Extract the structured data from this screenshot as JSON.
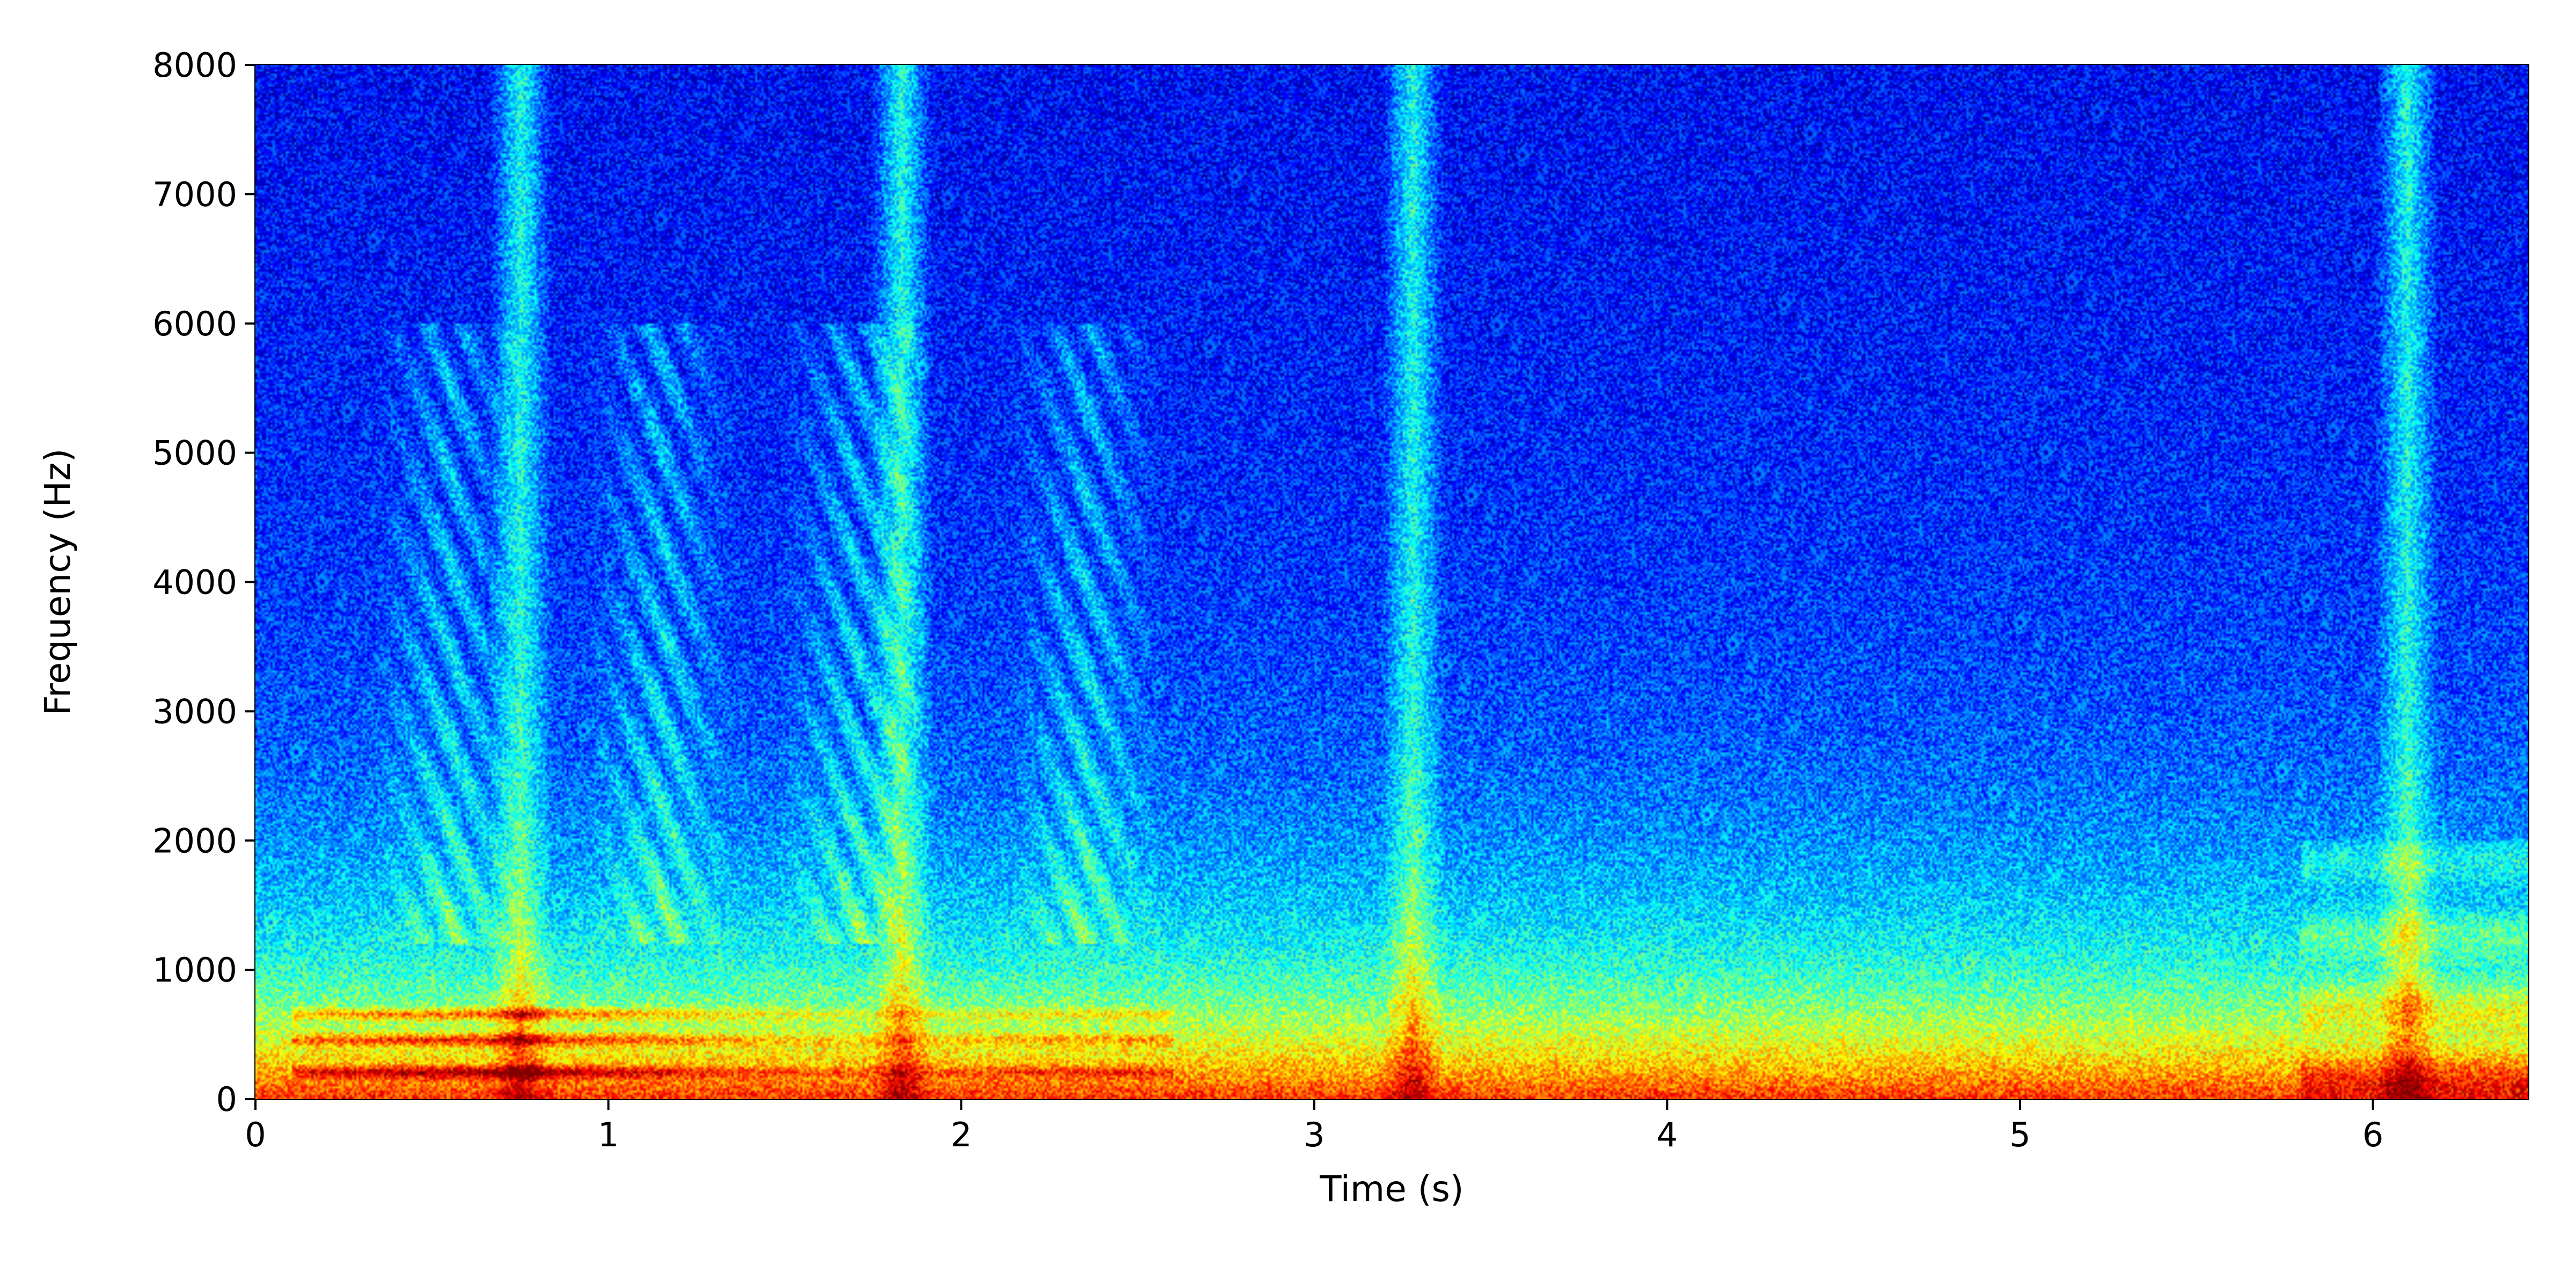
{
  "chart_data": {
    "type": "heatmap",
    "title": "",
    "xlabel": "Time (s)",
    "ylabel": "Frequency (Hz)",
    "xlim": [
      0,
      6.44
    ],
    "ylim": [
      0,
      8000
    ],
    "x_ticks": [
      0,
      1,
      2,
      3,
      4,
      5,
      6
    ],
    "y_ticks": [
      0,
      1000,
      2000,
      3000,
      4000,
      5000,
      6000,
      7000,
      8000
    ],
    "colormap": "jet",
    "grid": false,
    "legend": "none",
    "features": {
      "high_energy_harmonics_hz": [
        200,
        450,
        650
      ],
      "high_energy_time_range_s": [
        0.1,
        2.6
      ],
      "broadband_bursts_s": [
        0.75,
        1.83,
        3.28,
        6.1
      ],
      "chirp_patterns_s": [
        0.55,
        1.15,
        1.7,
        2.35
      ]
    }
  }
}
